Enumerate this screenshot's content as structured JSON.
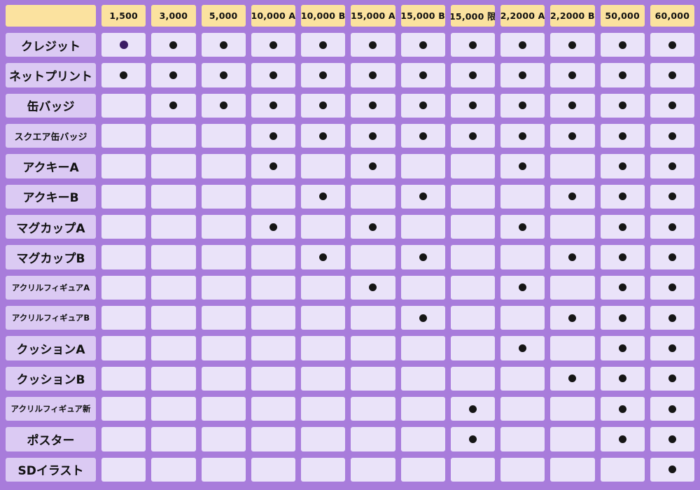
{
  "colors": {
    "background": "#a87cdb",
    "header_bg": "#fbe29f",
    "label_bg": "#dbcaf3",
    "cell_bg": "#eae3f9",
    "dot": "#161616",
    "dot_special": "#3a1b63"
  },
  "chart_data": {
    "type": "table",
    "title": "",
    "corner_label": "",
    "legend_position": "none",
    "grid": true,
    "columns": [
      "1,500",
      "3,000",
      "5,000",
      "10,000 A",
      "10,000 B",
      "15,000 A",
      "15,000 B",
      "15,000 限",
      "2,2000 A",
      "2,2000 B",
      "50,000",
      "60,000"
    ],
    "cell_values": {
      "0": "empty",
      "1": "filled-dot",
      "2": "purple-dot"
    },
    "rows": [
      {
        "label": "クレジット",
        "cells": [
          2,
          1,
          1,
          1,
          1,
          1,
          1,
          1,
          1,
          1,
          1,
          1
        ]
      },
      {
        "label": "ネットプリント",
        "cells": [
          1,
          1,
          1,
          1,
          1,
          1,
          1,
          1,
          1,
          1,
          1,
          1
        ]
      },
      {
        "label": "缶バッジ",
        "cells": [
          0,
          1,
          1,
          1,
          1,
          1,
          1,
          1,
          1,
          1,
          1,
          1
        ]
      },
      {
        "label": "スクエア缶バッジ",
        "cells": [
          0,
          0,
          0,
          1,
          1,
          1,
          1,
          1,
          1,
          1,
          1,
          1
        ]
      },
      {
        "label": "アクキーA",
        "cells": [
          0,
          0,
          0,
          1,
          0,
          1,
          0,
          0,
          1,
          0,
          1,
          1
        ]
      },
      {
        "label": "アクキーB",
        "cells": [
          0,
          0,
          0,
          0,
          1,
          0,
          1,
          0,
          0,
          1,
          1,
          1
        ]
      },
      {
        "label": "マグカップA",
        "cells": [
          0,
          0,
          0,
          1,
          0,
          1,
          0,
          0,
          1,
          0,
          1,
          1
        ]
      },
      {
        "label": "マグカップB",
        "cells": [
          0,
          0,
          0,
          0,
          1,
          0,
          1,
          0,
          0,
          1,
          1,
          1
        ]
      },
      {
        "label": "アクリルフィギュアA",
        "cells": [
          0,
          0,
          0,
          0,
          0,
          1,
          0,
          0,
          1,
          0,
          1,
          1
        ]
      },
      {
        "label": "アクリルフィギュアB",
        "cells": [
          0,
          0,
          0,
          0,
          0,
          0,
          1,
          0,
          0,
          1,
          1,
          1
        ]
      },
      {
        "label": "クッションA",
        "cells": [
          0,
          0,
          0,
          0,
          0,
          0,
          0,
          0,
          1,
          0,
          1,
          1
        ]
      },
      {
        "label": "クッションB",
        "cells": [
          0,
          0,
          0,
          0,
          0,
          0,
          0,
          0,
          0,
          1,
          1,
          1
        ]
      },
      {
        "label": "アクリルフィギュア新",
        "cells": [
          0,
          0,
          0,
          0,
          0,
          0,
          0,
          1,
          0,
          0,
          1,
          1
        ]
      },
      {
        "label": "ポスター",
        "cells": [
          0,
          0,
          0,
          0,
          0,
          0,
          0,
          1,
          0,
          0,
          1,
          1
        ]
      },
      {
        "label": "SDイラスト",
        "cells": [
          0,
          0,
          0,
          0,
          0,
          0,
          0,
          0,
          0,
          0,
          0,
          1
        ]
      }
    ]
  }
}
